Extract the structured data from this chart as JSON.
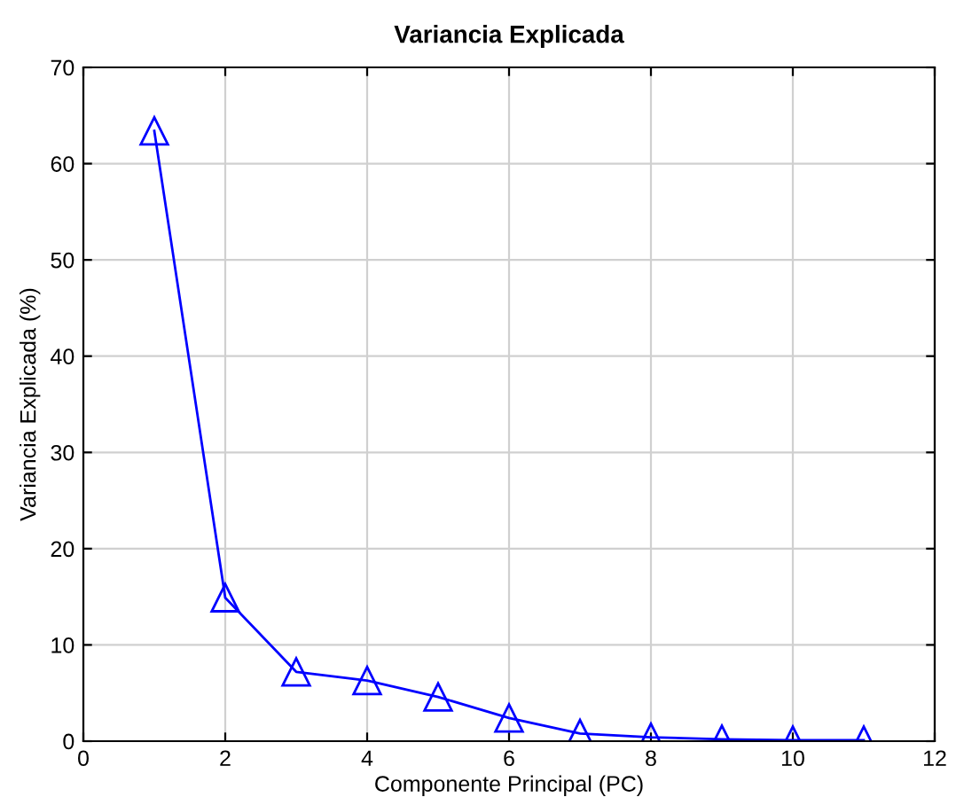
{
  "chart_data": {
    "type": "line",
    "title": "Variancia Explicada",
    "xlabel": "Componente Principal (PC)",
    "ylabel": "Variancia Explicada (%)",
    "x": [
      1,
      2,
      3,
      4,
      5,
      6,
      7,
      8,
      9,
      10,
      11
    ],
    "series": [
      {
        "color": "#0000ff",
        "values": [
          63.4,
          14.9,
          7.2,
          6.3,
          4.6,
          2.4,
          0.8,
          0.4,
          0.2,
          0.1,
          0.1
        ]
      }
    ],
    "xlim": [
      0,
      12
    ],
    "xticks": [
      0,
      2,
      4,
      6,
      8,
      10,
      12
    ],
    "ylim": [
      0,
      70
    ],
    "yticks": [
      0,
      10,
      20,
      30,
      40,
      50,
      60,
      70
    ],
    "grid": true,
    "marker": "triangle",
    "line_style": "solid"
  }
}
